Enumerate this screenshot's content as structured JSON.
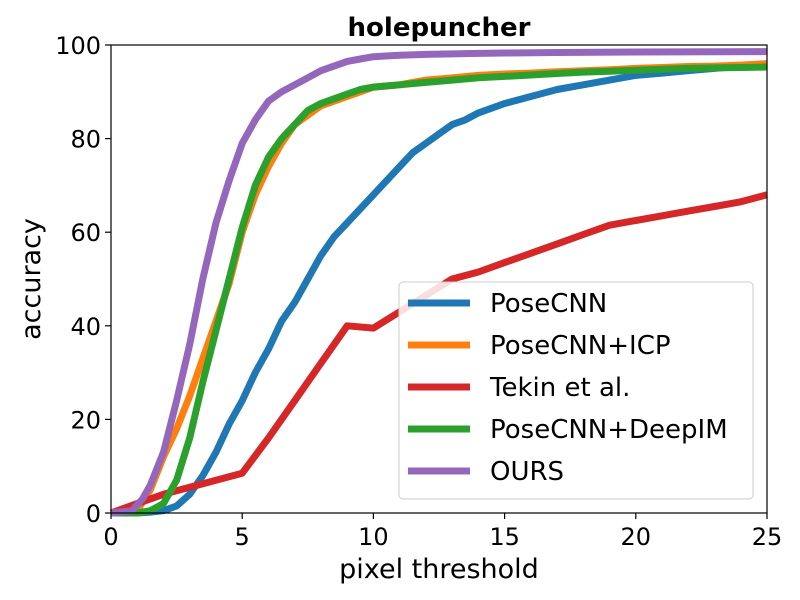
{
  "chart_data": {
    "type": "line",
    "title": "holepuncher",
    "xlabel": "pixel threshold",
    "ylabel": "accuracy",
    "xlim": [
      0,
      25
    ],
    "ylim": [
      0,
      100
    ],
    "xticks": [
      0,
      5,
      10,
      15,
      20,
      25
    ],
    "yticks": [
      0,
      20,
      40,
      60,
      80,
      100
    ],
    "grid": false,
    "legend_position": "lower-right",
    "series": [
      {
        "name": "PoseCNN",
        "color": "#1f77b4",
        "points": [
          [
            0,
            0
          ],
          [
            1,
            0
          ],
          [
            1.5,
            0.2
          ],
          [
            2,
            0.5
          ],
          [
            2.5,
            1.5
          ],
          [
            3,
            4
          ],
          [
            3.5,
            8
          ],
          [
            4,
            13
          ],
          [
            4.5,
            19
          ],
          [
            5,
            24
          ],
          [
            5.5,
            30
          ],
          [
            6,
            35
          ],
          [
            6.5,
            41
          ],
          [
            7,
            45
          ],
          [
            7.5,
            50
          ],
          [
            8,
            55
          ],
          [
            8.5,
            59
          ],
          [
            9,
            62
          ],
          [
            9.5,
            65
          ],
          [
            10,
            68
          ],
          [
            10.5,
            71
          ],
          [
            11,
            74
          ],
          [
            11.5,
            77
          ],
          [
            12,
            79
          ],
          [
            12.5,
            81
          ],
          [
            13,
            83
          ],
          [
            13.5,
            84
          ],
          [
            14,
            85.5
          ],
          [
            15,
            87.5
          ],
          [
            16,
            89
          ],
          [
            17,
            90.5
          ],
          [
            18,
            91.5
          ],
          [
            19,
            92.5
          ],
          [
            20,
            93.5
          ],
          [
            21,
            94
          ],
          [
            22,
            94.5
          ],
          [
            23,
            95
          ],
          [
            24,
            95.5
          ],
          [
            25,
            96
          ]
        ]
      },
      {
        "name": "PoseCNN+ICP",
        "color": "#ff7f0e",
        "points": [
          [
            0,
            0
          ],
          [
            0.5,
            0
          ],
          [
            1,
            0.5
          ],
          [
            1.5,
            5
          ],
          [
            2,
            12
          ],
          [
            2.5,
            18
          ],
          [
            3,
            25
          ],
          [
            3.5,
            33
          ],
          [
            4,
            41
          ],
          [
            4.5,
            49
          ],
          [
            5,
            60
          ],
          [
            5.5,
            68
          ],
          [
            6,
            74
          ],
          [
            6.5,
            79
          ],
          [
            7,
            83
          ],
          [
            7.5,
            85
          ],
          [
            8,
            87
          ],
          [
            8.5,
            88
          ],
          [
            9,
            89
          ],
          [
            9.5,
            90
          ],
          [
            10,
            91
          ],
          [
            11,
            91.5
          ],
          [
            12,
            92.5
          ],
          [
            13,
            93
          ],
          [
            14,
            93.5
          ],
          [
            15,
            93.8
          ],
          [
            16,
            94
          ],
          [
            17,
            94.3
          ],
          [
            18,
            94.5
          ],
          [
            19,
            94.7
          ],
          [
            20,
            95
          ],
          [
            21,
            95.2
          ],
          [
            22,
            95.4
          ],
          [
            23,
            95.5
          ],
          [
            24,
            95.7
          ],
          [
            25,
            96
          ]
        ]
      },
      {
        "name": "Tekin et al.",
        "color": "#d62728",
        "points": [
          [
            0,
            0
          ],
          [
            1,
            2
          ],
          [
            2,
            4
          ],
          [
            3,
            5.5
          ],
          [
            4,
            7
          ],
          [
            5,
            8.5
          ],
          [
            6,
            16
          ],
          [
            7,
            24
          ],
          [
            8,
            32
          ],
          [
            9,
            40
          ],
          [
            10,
            39.5
          ],
          [
            11,
            43
          ],
          [
            12,
            46.5
          ],
          [
            13,
            50
          ],
          [
            14,
            51.5
          ],
          [
            15,
            53.5
          ],
          [
            16,
            55.5
          ],
          [
            17,
            57.5
          ],
          [
            18,
            59.5
          ],
          [
            19,
            61.5
          ],
          [
            20,
            62.5
          ],
          [
            21,
            63.5
          ],
          [
            22,
            64.5
          ],
          [
            23,
            65.5
          ],
          [
            24,
            66.5
          ],
          [
            25,
            68
          ]
        ]
      },
      {
        "name": "PoseCNN+DeepIM",
        "color": "#2ca02c",
        "points": [
          [
            0,
            0
          ],
          [
            1,
            0
          ],
          [
            1.5,
            0.5
          ],
          [
            2,
            2
          ],
          [
            2.5,
            7
          ],
          [
            3,
            16
          ],
          [
            3.5,
            28
          ],
          [
            4,
            39
          ],
          [
            4.5,
            50
          ],
          [
            5,
            61
          ],
          [
            5.5,
            70
          ],
          [
            6,
            76
          ],
          [
            6.5,
            80
          ],
          [
            7,
            83
          ],
          [
            7.5,
            86
          ],
          [
            8,
            87.5
          ],
          [
            8.5,
            88.5
          ],
          [
            9,
            89.5
          ],
          [
            9.5,
            90.5
          ],
          [
            10,
            91
          ],
          [
            11,
            91.5
          ],
          [
            12,
            92
          ],
          [
            13,
            92.5
          ],
          [
            14,
            93
          ],
          [
            15,
            93.3
          ],
          [
            16,
            93.6
          ],
          [
            17,
            93.9
          ],
          [
            18,
            94.2
          ],
          [
            19,
            94.4
          ],
          [
            20,
            94.6
          ],
          [
            21,
            94.8
          ],
          [
            22,
            95
          ],
          [
            23,
            95.1
          ],
          [
            24,
            95.2
          ],
          [
            25,
            95.3
          ]
        ]
      },
      {
        "name": "OURS",
        "color": "#9467bd",
        "points": [
          [
            0,
            0
          ],
          [
            0.8,
            0.5
          ],
          [
            1.2,
            3
          ],
          [
            1.5,
            6
          ],
          [
            2,
            13
          ],
          [
            2.5,
            24
          ],
          [
            3,
            36
          ],
          [
            3.5,
            50
          ],
          [
            4,
            62
          ],
          [
            4.5,
            71
          ],
          [
            5,
            79
          ],
          [
            5.5,
            84
          ],
          [
            6,
            88
          ],
          [
            6.5,
            90
          ],
          [
            7,
            91.5
          ],
          [
            7.5,
            93
          ],
          [
            8,
            94.5
          ],
          [
            8.5,
            95.5
          ],
          [
            9,
            96.5
          ],
          [
            9.5,
            97
          ],
          [
            10,
            97.5
          ],
          [
            11,
            97.8
          ],
          [
            12,
            98
          ],
          [
            13,
            98.1
          ],
          [
            14,
            98.2
          ],
          [
            15,
            98.3
          ],
          [
            17,
            98.4
          ],
          [
            20,
            98.5
          ],
          [
            25,
            98.6
          ]
        ]
      }
    ]
  }
}
